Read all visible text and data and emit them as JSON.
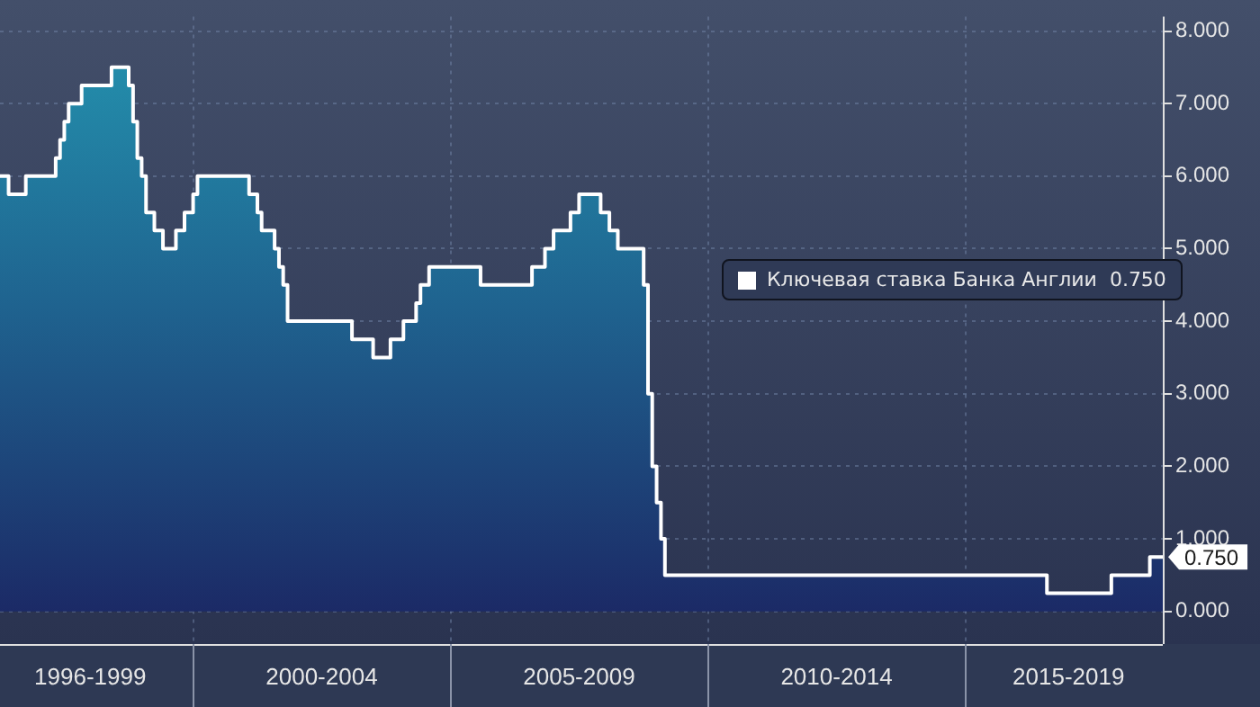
{
  "chart_data": {
    "type": "area",
    "x": [
      "1996-04",
      "1996-06",
      "1996-06",
      "1996-10",
      "1996-10",
      "1997-05",
      "1997-05",
      "1997-06",
      "1997-06",
      "1997-07",
      "1997-07",
      "1997-08",
      "1997-08",
      "1997-11",
      "1997-11",
      "1998-06",
      "1998-06",
      "1998-10",
      "1998-10",
      "1998-11",
      "1998-11",
      "1998-12",
      "1998-12",
      "1999-01",
      "1999-01",
      "1999-02",
      "1999-02",
      "1999-04",
      "1999-04",
      "1999-06",
      "1999-06",
      "1999-09",
      "1999-09",
      "1999-11",
      "1999-11",
      "2000-01",
      "2000-01",
      "2000-02",
      "2000-02",
      "2001-02",
      "2001-02",
      "2001-04",
      "2001-04",
      "2001-05",
      "2001-05",
      "2001-08",
      "2001-08",
      "2001-09",
      "2001-09",
      "2001-10",
      "2001-10",
      "2001-11",
      "2001-11",
      "2003-02",
      "2003-02",
      "2003-07",
      "2003-07",
      "2003-11",
      "2003-11",
      "2004-02",
      "2004-02",
      "2004-05",
      "2004-05",
      "2004-06",
      "2004-06",
      "2004-08",
      "2004-08",
      "2005-08",
      "2005-08",
      "2006-08",
      "2006-08",
      "2006-11",
      "2006-11",
      "2007-01",
      "2007-01",
      "2007-05",
      "2007-05",
      "2007-07",
      "2007-07",
      "2007-12",
      "2007-12",
      "2008-02",
      "2008-02",
      "2008-04",
      "2008-04",
      "2008-10",
      "2008-10",
      "2008-11",
      "2008-11",
      "2008-12",
      "2008-12",
      "2009-01",
      "2009-01",
      "2009-02",
      "2009-02",
      "2009-03",
      "2009-03",
      "2016-08",
      "2016-08",
      "2017-11",
      "2017-11",
      "2018-08",
      "2018-08",
      "2018-11"
    ],
    "series": [
      {
        "name": "Ключевая ставка Банка Англии  0.750",
        "color": "#ffffff",
        "values": [
          6.0,
          6.0,
          5.75,
          5.75,
          6.0,
          6.0,
          6.25,
          6.25,
          6.5,
          6.5,
          6.75,
          6.75,
          7.0,
          7.0,
          7.25,
          7.25,
          7.5,
          7.5,
          7.25,
          7.25,
          6.75,
          6.75,
          6.25,
          6.25,
          6.0,
          6.0,
          5.5,
          5.5,
          5.25,
          5.25,
          5.0,
          5.0,
          5.25,
          5.25,
          5.5,
          5.5,
          5.75,
          5.75,
          6.0,
          6.0,
          5.75,
          5.75,
          5.5,
          5.5,
          5.25,
          5.25,
          5.0,
          5.0,
          4.75,
          4.75,
          4.5,
          4.5,
          4.0,
          4.0,
          3.75,
          3.75,
          3.5,
          3.5,
          3.75,
          3.75,
          4.0,
          4.0,
          4.25,
          4.25,
          4.5,
          4.5,
          4.75,
          4.75,
          4.5,
          4.5,
          4.75,
          4.75,
          5.0,
          5.0,
          5.25,
          5.25,
          5.5,
          5.5,
          5.75,
          5.75,
          5.5,
          5.5,
          5.25,
          5.25,
          5.0,
          5.0,
          4.5,
          4.5,
          3.0,
          3.0,
          2.0,
          2.0,
          1.5,
          1.5,
          1.0,
          1.0,
          0.5,
          0.5,
          0.25,
          0.25,
          0.5,
          0.5,
          0.75,
          0.75
        ]
      }
    ],
    "xlim": [
      "1996-04",
      "2018-11"
    ],
    "xticks": [
      {
        "value": "1998",
        "label": "1996-1999"
      },
      {
        "value": "2000",
        "label": null
      },
      {
        "value": "2002-07",
        "label": "2000-2004"
      },
      {
        "value": "2005",
        "label": null
      },
      {
        "value": "2007-07",
        "label": "2005-2009"
      },
      {
        "value": "2010",
        "label": null
      },
      {
        "value": "2012-07",
        "label": "2010-2014"
      },
      {
        "value": "2015",
        "label": null
      },
      {
        "value": "2017",
        "label": "2015-2019"
      }
    ],
    "ylim": [
      -0.45,
      8.2
    ],
    "yticks": [
      {
        "value": 0,
        "label": "0.000"
      },
      {
        "value": 1,
        "label": "1.000"
      },
      {
        "value": 2,
        "label": "2.000"
      },
      {
        "value": 3,
        "label": "3.000"
      },
      {
        "value": 4,
        "label": "4.000"
      },
      {
        "value": 5,
        "label": "5.000"
      },
      {
        "value": 6,
        "label": "6.000"
      },
      {
        "value": 7,
        "label": "7.000"
      },
      {
        "value": 8,
        "label": "8.000"
      }
    ],
    "grid": true,
    "legend": "right",
    "annotations": [
      {
        "text": "0.750",
        "x": "2018-11",
        "y": 0.75
      }
    ]
  }
}
